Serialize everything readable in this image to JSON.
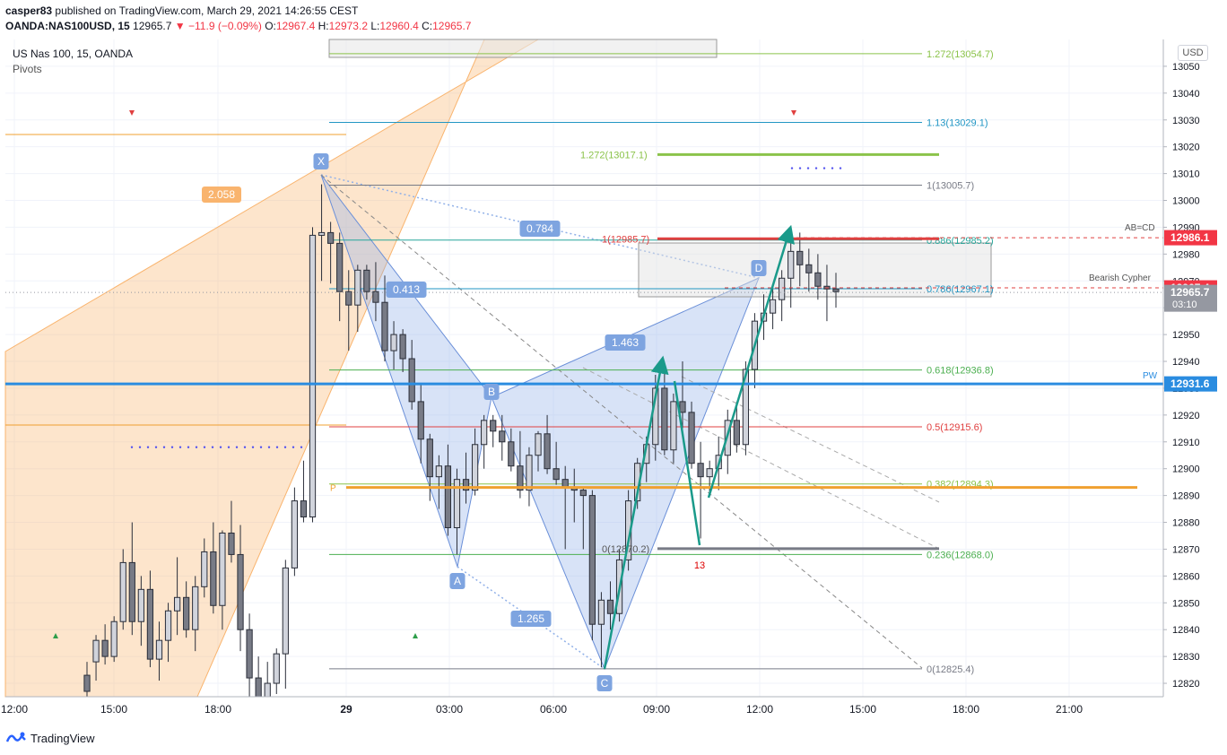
{
  "header": {
    "publisher": "casper83",
    "published_text": "published on TradingView.com, March 29, 2021 14:26:55 CEST",
    "symbol": "OANDA:NAS100USD, 15",
    "last": "12965.7",
    "change": "−11.9 (−0.09%)",
    "o_label": "O:",
    "o": "12967.4",
    "h_label": "H:",
    "h": "12973.2",
    "l_label": "L:",
    "l": "12960.4",
    "c_label": "C:",
    "c": "12965.7"
  },
  "legend": {
    "title": "US Nas 100, 15, OANDA",
    "indicator": "Pivots"
  },
  "currency_button": "USD",
  "footer": {
    "brand": "TradingView"
  },
  "colors": {
    "up_candle": "#d1d4dc",
    "down_candle": "#787b86",
    "pattern_fill": "#90b0e8",
    "fib_fill": "#f9b46e",
    "arrow": "#1a9a8a",
    "pivot_line": "#2a8ce0",
    "orange_line": "#f0a030",
    "price_red": "#f23645"
  },
  "chart_data": {
    "type": "candlestick",
    "y_axis": {
      "min": 12815,
      "max": 13060,
      "ticks": [
        12820,
        12830,
        12840,
        12850,
        12860,
        12870,
        12880,
        12890,
        12900,
        12910,
        12920,
        12930,
        12940,
        12950,
        12960,
        12970,
        12980,
        12990,
        13000,
        13010,
        13020,
        13030,
        13040,
        13050
      ]
    },
    "x_axis": {
      "ticks": [
        "12:00",
        "15:00",
        "18:00",
        "29",
        "03:00",
        "06:00",
        "09:00",
        "12:00",
        "15:00",
        "18:00",
        "21:00"
      ]
    },
    "price_labels": [
      {
        "value": 12986.1,
        "text": "12986.1",
        "color": "#f23645"
      },
      {
        "value": 12967.4,
        "text": "12967.4",
        "color": "#f23645"
      },
      {
        "value": 12965.7,
        "text": "12965.7",
        "sub": "03:10",
        "color": "#9598a1"
      },
      {
        "value": 12931.6,
        "text": "12931.6",
        "color": "#2a8ce0"
      }
    ],
    "candles": [
      [
        12823,
        12828,
        12815,
        12817
      ],
      [
        12828,
        12838,
        12821,
        12836
      ],
      [
        12836,
        12842,
        12827,
        12830
      ],
      [
        12830,
        12845,
        12828,
        12843
      ],
      [
        12843,
        12870,
        12840,
        12865
      ],
      [
        12865,
        12880,
        12838,
        12843
      ],
      [
        12843,
        12860,
        12834,
        12855
      ],
      [
        12855,
        12862,
        12826,
        12829
      ],
      [
        12829,
        12843,
        12821,
        12836
      ],
      [
        12836,
        12850,
        12828,
        12847
      ],
      [
        12847,
        12867,
        12838,
        12852
      ],
      [
        12852,
        12858,
        12837,
        12840
      ],
      [
        12840,
        12860,
        12832,
        12856
      ],
      [
        12856,
        12874,
        12852,
        12869
      ],
      [
        12869,
        12880,
        12846,
        12849
      ],
      [
        12849,
        12877,
        12840,
        12876
      ],
      [
        12876,
        12888,
        12865,
        12868
      ],
      [
        12868,
        12879,
        12832,
        12840
      ],
      [
        12840,
        12846,
        12812,
        12822
      ],
      [
        12822,
        12830,
        12808,
        12812
      ],
      [
        12812,
        12828,
        12806,
        12820
      ],
      [
        12820,
        12833,
        12816,
        12831
      ],
      [
        12831,
        12866,
        12818,
        12863
      ],
      [
        12863,
        12893,
        12860,
        12888
      ],
      [
        12888,
        12903,
        12880,
        12882
      ],
      [
        12882,
        12990,
        12880,
        12987
      ],
      [
        12987,
        13006,
        12970,
        12988
      ],
      [
        12988,
        12992,
        12969,
        12984
      ],
      [
        12984,
        12988,
        12955,
        12966
      ],
      [
        12966,
        12974,
        12944,
        12961
      ],
      [
        12961,
        12976,
        12951,
        12974
      ],
      [
        12974,
        12976,
        12963,
        12966
      ],
      [
        12966,
        12977,
        12955,
        12962
      ],
      [
        12962,
        12972,
        12940,
        12944
      ],
      [
        12944,
        12955,
        12937,
        12950
      ],
      [
        12950,
        12952,
        12936,
        12941
      ],
      [
        12941,
        12948,
        12922,
        12925
      ],
      [
        12925,
        12932,
        12902,
        12911
      ],
      [
        12911,
        12913,
        12888,
        12897
      ],
      [
        12897,
        12905,
        12885,
        12901
      ],
      [
        12901,
        12909,
        12875,
        12878
      ],
      [
        12878,
        12900,
        12868,
        12896
      ],
      [
        12896,
        12906,
        12887,
        12892
      ],
      [
        12892,
        12915,
        12890,
        12909
      ],
      [
        12909,
        12920,
        12900,
        12918
      ],
      [
        12918,
        12920,
        12908,
        12914
      ],
      [
        12914,
        12920,
        12903,
        12910
      ],
      [
        12910,
        12915,
        12899,
        12901
      ],
      [
        12901,
        12914,
        12889,
        12892
      ],
      [
        12892,
        12908,
        12886,
        12905
      ],
      [
        12905,
        12914,
        12899,
        12913
      ],
      [
        12913,
        12920,
        12898,
        12900
      ],
      [
        12900,
        12910,
        12894,
        12896
      ],
      [
        12896,
        12901,
        12870,
        12893
      ],
      [
        12893,
        12900,
        12880,
        12892
      ],
      [
        12892,
        12893,
        12870,
        12890
      ],
      [
        12890,
        12892,
        12836,
        12842
      ],
      [
        12842,
        12854,
        12826,
        12851
      ],
      [
        12851,
        12858,
        12840,
        12846
      ],
      [
        12846,
        12870,
        12843,
        12866
      ],
      [
        12866,
        12892,
        12862,
        12888
      ],
      [
        12888,
        12904,
        12885,
        12902
      ],
      [
        12902,
        12912,
        12895,
        12909
      ],
      [
        12909,
        12935,
        12903,
        12930
      ],
      [
        12930,
        12938,
        12905,
        12907
      ],
      [
        12907,
        12928,
        12902,
        12925
      ],
      [
        12925,
        12940,
        12915,
        12921
      ],
      [
        12921,
        12925,
        12900,
        12902
      ],
      [
        12902,
        12910,
        12874,
        12897
      ],
      [
        12897,
        12903,
        12890,
        12900
      ],
      [
        12900,
        12912,
        12892,
        12905
      ],
      [
        12905,
        12922,
        12898,
        12918
      ],
      [
        12918,
        12925,
        12906,
        12909
      ],
      [
        12909,
        12940,
        12905,
        12937
      ],
      [
        12937,
        12958,
        12930,
        12955
      ],
      [
        12955,
        12965,
        12948,
        12958
      ],
      [
        12958,
        12968,
        12952,
        12963
      ],
      [
        12963,
        12974,
        12955,
        12971
      ],
      [
        12971,
        12984,
        12960,
        12981
      ],
      [
        12981,
        12988,
        12968,
        12976
      ],
      [
        12976,
        12982,
        12966,
        12973
      ],
      [
        12973,
        12980,
        12963,
        12968
      ],
      [
        12968,
        12976,
        12955,
        12967
      ],
      [
        12967,
        12973,
        12960,
        12966
      ]
    ],
    "fib_levels": [
      {
        "text": "1.272(13054.7)",
        "value": 13054.7,
        "color": "#8bc34a"
      },
      {
        "text": "1.13(13029.1)",
        "value": 13029.1,
        "color": "#2196c4"
      },
      {
        "text": "1(13005.7)",
        "value": 13005.7,
        "color": "#787b86"
      },
      {
        "text": "0.886(12985.2)",
        "value": 12985.2,
        "color": "#26a69a"
      },
      {
        "text": "0.786(12967.1)",
        "value": 12967.1,
        "color": "#2196c4"
      },
      {
        "text": "0.618(12936.8)",
        "value": 12936.8,
        "color": "#4caf50"
      },
      {
        "text": "0.5(12915.6)",
        "value": 12915.6,
        "color": "#e04040"
      },
      {
        "text": "0.382(12894.3)",
        "value": 12894.3,
        "color": "#8bc34a"
      },
      {
        "text": "0.236(12868.0)",
        "value": 12868.0,
        "color": "#4caf50"
      },
      {
        "text": "0(12825.4)",
        "value": 12825.4,
        "color": "#787b86"
      }
    ],
    "annotations": {
      "fib_1272": "1.272(13017.1)",
      "fib_1": "1(12985.7)",
      "fib_0": "0(12870.2)",
      "ab_cd": "AB=CD",
      "bearish_cypher": "Bearish Cypher",
      "pw": "PW",
      "p": "P",
      "ratio_2058": "2.058",
      "ratio_0784": "0.784",
      "ratio_0413": "0.413",
      "ratio_1463": "1.463",
      "ratio_1265": "1.265",
      "td_13": "13",
      "point_x": "X",
      "point_a": "A",
      "point_b": "B",
      "point_c": "C",
      "point_d": "D"
    }
  }
}
